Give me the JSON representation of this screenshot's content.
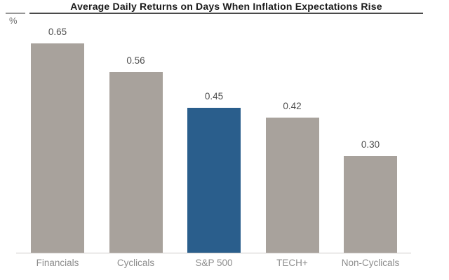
{
  "header": {
    "title": "Average Daily Returns on Days When Inflation Expectations Rise",
    "unit_label": "%"
  },
  "chart_data": {
    "type": "bar",
    "title": "Average Daily Returns on Days When Inflation Expectations Rise",
    "ylabel": "%",
    "xlabel": "",
    "categories": [
      "Financials",
      "Cyclicals",
      "S&P 500",
      "TECH+",
      "Non-Cyclicals"
    ],
    "values": [
      0.65,
      0.56,
      0.45,
      0.42,
      0.3
    ],
    "value_labels": [
      "0.65",
      "0.56",
      "0.45",
      "0.42",
      "0.30"
    ],
    "ylim": [
      0,
      0.78
    ],
    "grid": false,
    "legend": "none",
    "highlight_category": "S&P 500",
    "colors": {
      "bar_default": "#A8A29C",
      "bar_highlight": "#2A5E8C",
      "title_text": "#1A1A1A",
      "title_rule": "#4A4A4A",
      "value_label_text": "#4D4D4D",
      "category_label_text": "#8C8C8C",
      "baseline": "#CCC9C6",
      "unit_text": "#6F6F6F"
    }
  }
}
